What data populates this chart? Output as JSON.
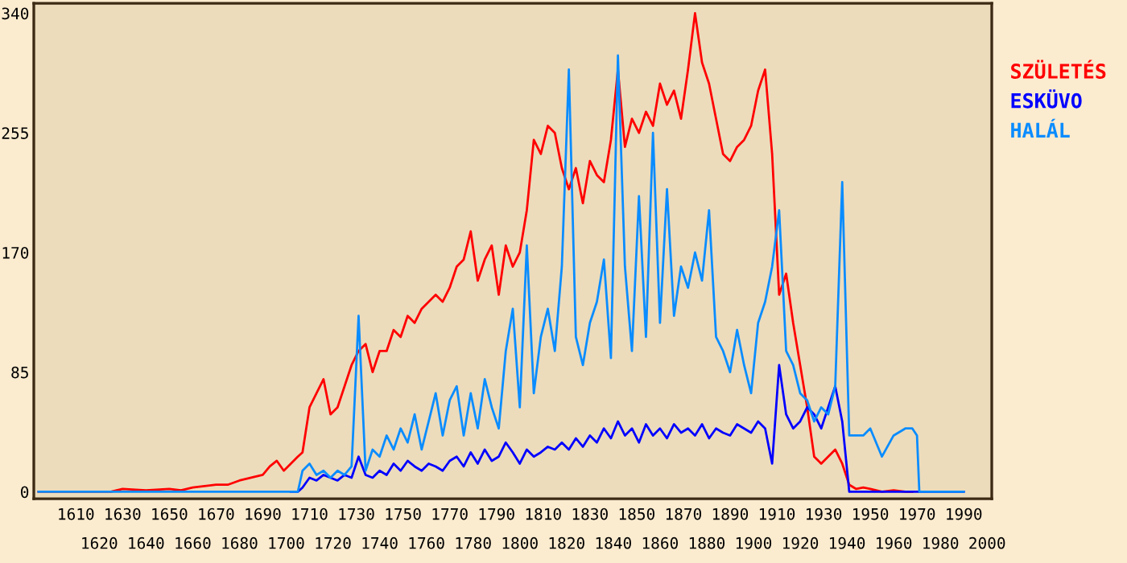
{
  "chart_data": {
    "type": "line",
    "x": [
      1594,
      1625,
      1630,
      1640,
      1650,
      1655,
      1660,
      1665,
      1670,
      1675,
      1680,
      1685,
      1690,
      1693,
      1696,
      1699,
      1702,
      1705,
      1707,
      1710,
      1713,
      1716,
      1719,
      1722,
      1725,
      1728,
      1731,
      1734,
      1737,
      1740,
      1743,
      1746,
      1749,
      1752,
      1755,
      1758,
      1761,
      1764,
      1767,
      1770,
      1773,
      1776,
      1779,
      1782,
      1785,
      1788,
      1791,
      1794,
      1797,
      1800,
      1803,
      1806,
      1809,
      1812,
      1815,
      1818,
      1821,
      1824,
      1827,
      1830,
      1833,
      1836,
      1839,
      1842,
      1845,
      1848,
      1851,
      1854,
      1857,
      1860,
      1863,
      1866,
      1869,
      1872,
      1875,
      1878,
      1881,
      1884,
      1887,
      1890,
      1893,
      1896,
      1899,
      1902,
      1905,
      1908,
      1911,
      1914,
      1917,
      1920,
      1923,
      1926,
      1929,
      1932,
      1935,
      1938,
      1941,
      1944,
      1947,
      1950,
      1955,
      1960,
      1965,
      1968,
      1970,
      1971,
      1980,
      1990
    ],
    "series": [
      {
        "name": "SZÜLETÉS",
        "color": "#ff0000",
        "values": [
          0,
          0,
          2,
          1,
          2,
          1,
          3,
          4,
          5,
          5,
          8,
          10,
          12,
          18,
          22,
          15,
          20,
          25,
          28,
          60,
          70,
          80,
          55,
          60,
          75,
          90,
          100,
          105,
          85,
          100,
          100,
          115,
          110,
          125,
          120,
          130,
          135,
          140,
          135,
          145,
          160,
          165,
          185,
          150,
          165,
          175,
          140,
          175,
          160,
          170,
          200,
          250,
          240,
          260,
          255,
          230,
          215,
          230,
          205,
          235,
          225,
          220,
          250,
          300,
          245,
          265,
          255,
          270,
          260,
          290,
          275,
          285,
          265,
          300,
          340,
          305,
          290,
          265,
          240,
          235,
          245,
          250,
          260,
          285,
          300,
          240,
          140,
          155,
          120,
          90,
          60,
          25,
          20,
          25,
          30,
          20,
          5,
          2,
          3,
          2,
          0,
          1,
          0,
          0,
          null,
          null,
          null,
          null
        ]
      },
      {
        "name": "ESKÜVO",
        "color": "#0000ff",
        "values": [
          null,
          null,
          null,
          null,
          null,
          null,
          null,
          null,
          null,
          null,
          null,
          null,
          null,
          null,
          null,
          null,
          0,
          0,
          3,
          10,
          8,
          12,
          10,
          8,
          12,
          10,
          25,
          12,
          10,
          15,
          12,
          20,
          15,
          22,
          18,
          15,
          20,
          18,
          15,
          22,
          25,
          18,
          28,
          20,
          30,
          22,
          25,
          35,
          28,
          20,
          30,
          25,
          28,
          32,
          30,
          35,
          30,
          38,
          32,
          40,
          35,
          45,
          38,
          50,
          40,
          45,
          35,
          48,
          40,
          45,
          38,
          48,
          42,
          45,
          40,
          48,
          38,
          45,
          42,
          40,
          48,
          45,
          42,
          50,
          45,
          20,
          90,
          55,
          45,
          50,
          60,
          55,
          45,
          60,
          75,
          50,
          0,
          0,
          0,
          0,
          0,
          0,
          0,
          0,
          0,
          0,
          0,
          0
        ]
      },
      {
        "name": "HALÁL",
        "color": "#0a8cff",
        "values": [
          0,
          0,
          0,
          0,
          0,
          0,
          0,
          0,
          0,
          0,
          0,
          0,
          0,
          0,
          0,
          0,
          0,
          0,
          15,
          20,
          12,
          15,
          10,
          15,
          12,
          18,
          125,
          15,
          30,
          25,
          40,
          30,
          45,
          35,
          55,
          30,
          50,
          70,
          40,
          65,
          75,
          40,
          70,
          45,
          80,
          60,
          45,
          100,
          130,
          60,
          175,
          70,
          110,
          130,
          100,
          160,
          300,
          110,
          90,
          120,
          135,
          165,
          95,
          310,
          160,
          100,
          210,
          110,
          255,
          120,
          215,
          125,
          160,
          145,
          170,
          150,
          200,
          110,
          100,
          85,
          115,
          90,
          70,
          120,
          135,
          160,
          200,
          100,
          90,
          70,
          65,
          50,
          60,
          55,
          75,
          220,
          40,
          40,
          40,
          45,
          25,
          40,
          45,
          45,
          40,
          0,
          0,
          0
        ]
      }
    ],
    "xlim": [
      1592,
      2002
    ],
    "ylim": [
      -5,
      347
    ],
    "xticks": [
      1610,
      1630,
      1650,
      1670,
      1690,
      1710,
      1730,
      1750,
      1770,
      1790,
      1810,
      1830,
      1850,
      1870,
      1890,
      1910,
      1930,
      1950,
      1970,
      1990
    ],
    "x2lim": [
      1592,
      2002
    ],
    "x2ticks": [
      1620,
      1640,
      1660,
      1680,
      1700,
      1720,
      1740,
      1760,
      1780,
      1800,
      1820,
      1840,
      1860,
      1880,
      1900,
      1920,
      1940,
      1960,
      1980,
      2000
    ],
    "yticks": [
      0,
      85,
      170,
      255,
      340
    ],
    "grid": false,
    "legend": "right",
    "marker": "none",
    "line_style": "solid"
  }
}
